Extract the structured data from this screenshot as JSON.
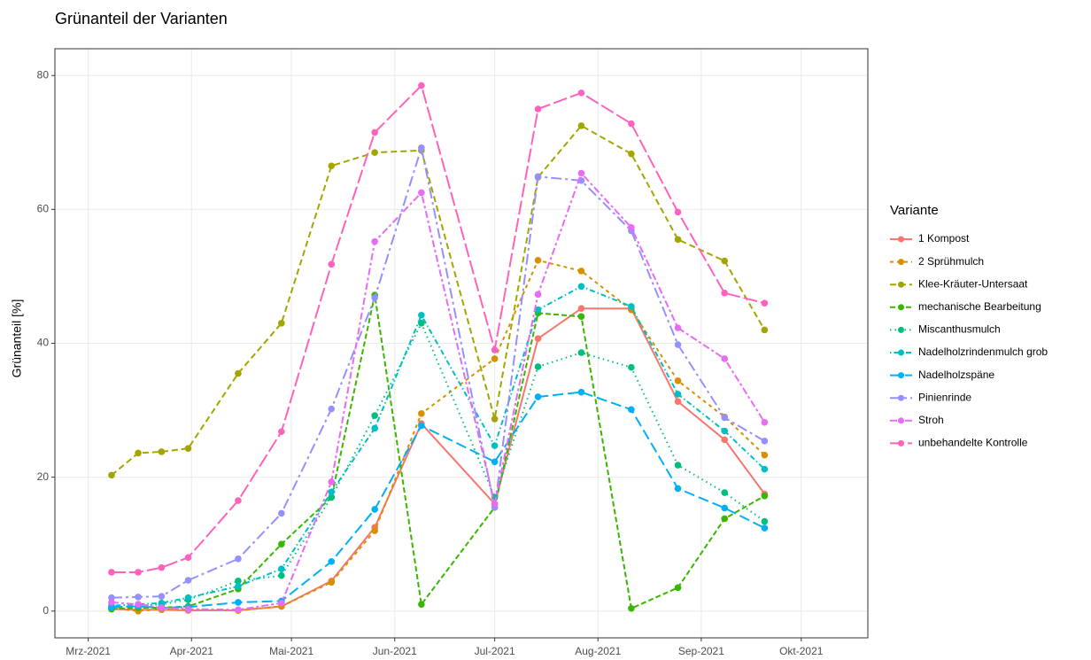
{
  "chart_data": {
    "type": "line",
    "title": "Grünanteil der Varianten",
    "y_label": "Grünanteil [%]",
    "legend_title": "Variante",
    "legend_position": "right",
    "grid": true,
    "x": [
      7,
      15,
      22,
      30,
      45,
      58,
      73,
      86,
      100,
      122,
      135,
      148,
      163,
      177,
      191,
      203
    ],
    "xlim": [
      -10,
      234
    ],
    "xticks": [
      {
        "value": 0,
        "label": "Mrz-2021"
      },
      {
        "value": 31,
        "label": "Apr-2021"
      },
      {
        "value": 61,
        "label": "Mai-2021"
      },
      {
        "value": 92,
        "label": "Jun-2021"
      },
      {
        "value": 122,
        "label": "Jul-2021"
      },
      {
        "value": 153,
        "label": "Aug-2021"
      },
      {
        "value": 184,
        "label": "Sep-2021"
      },
      {
        "value": 214,
        "label": "Okt-2021"
      }
    ],
    "ylim": [
      -4,
      84
    ],
    "yticks": [
      0,
      20,
      40,
      60,
      80
    ],
    "series": [
      {
        "name": "1 Kompost",
        "color": "#F8766D",
        "dash": "none",
        "values": [
          0.3,
          0.2,
          0.2,
          0.1,
          0.1,
          0.7,
          4.5,
          12.5,
          28,
          16,
          40.7,
          45.2,
          45.2,
          31.3,
          25.6,
          17.5
        ]
      },
      {
        "name": "2 Sprühmulch",
        "color": "#D89000",
        "dash": "4 4",
        "values": [
          0.5,
          0,
          0.3,
          0.2,
          0.1,
          0.7,
          4.3,
          12,
          29.5,
          37.7,
          52.4,
          50.8,
          45,
          34.4,
          29,
          23.3
        ]
      },
      {
        "name": "Klee-Kräuter-Untersaat",
        "color": "#A3A500",
        "dash": "7 4",
        "values": [
          20.3,
          23.6,
          23.8,
          24.3,
          35.5,
          43,
          66.5,
          68.5,
          68.8,
          28.7,
          64.8,
          72.5,
          68.3,
          55.5,
          52.3,
          42
        ]
      },
      {
        "name": "mechanische Bearbeitung",
        "color": "#39B600",
        "dash": "6 3",
        "values": [
          0.3,
          0.5,
          0.5,
          0.7,
          3.3,
          10,
          17,
          47.2,
          1,
          15.5,
          44.5,
          44,
          0.4,
          3.5,
          13.8,
          17.2
        ]
      },
      {
        "name": "Miscanthusmulch",
        "color": "#00BF7D",
        "dash": "1.5 4",
        "values": [
          0.5,
          0.8,
          1,
          1.7,
          4.5,
          5.3,
          17,
          29.2,
          43,
          17,
          36.5,
          38.6,
          36.4,
          21.8,
          17.7,
          13.4
        ]
      },
      {
        "name": "Nadelholzrindenmulch grob",
        "color": "#00BFC4",
        "dash": "1.5 3 6 3",
        "values": [
          0.8,
          1,
          1.2,
          2,
          3.7,
          6.3,
          17.8,
          27.3,
          44.2,
          24.7,
          45,
          48.5,
          45.5,
          32.4,
          26.9,
          21.2
        ]
      },
      {
        "name": "Nadelholzspäne",
        "color": "#00B0F6",
        "dash": "12 5",
        "values": [
          0.6,
          0.7,
          0.5,
          0.6,
          1.3,
          1.5,
          7.4,
          15.2,
          27.7,
          22.3,
          32,
          32.7,
          30.1,
          18.3,
          15.4,
          12.4
        ]
      },
      {
        "name": "Pinienrinde",
        "color": "#9590FF",
        "dash": "12 4 3 4",
        "values": [
          2,
          2.1,
          2.2,
          4.6,
          7.8,
          14.6,
          30.2,
          46.8,
          69.2,
          15.5,
          64.9,
          64.3,
          56.8,
          39.8,
          28.9,
          25.4
        ]
      },
      {
        "name": "Stroh",
        "color": "#E76BF3",
        "dash": "8 3 3 3",
        "values": [
          1.3,
          1,
          0.5,
          0.3,
          0.2,
          1.2,
          19.3,
          55.2,
          62.5,
          16,
          47.3,
          65.4,
          57.3,
          42.3,
          37.7,
          28.2
        ]
      },
      {
        "name": "unbehandelte Kontrolle",
        "color": "#FF62BC",
        "dash": "16 4",
        "values": [
          5.8,
          5.8,
          6.5,
          8,
          16.5,
          26.8,
          51.8,
          71.5,
          78.5,
          39,
          75,
          77.4,
          72.8,
          59.6,
          47.5,
          46
        ]
      }
    ]
  }
}
